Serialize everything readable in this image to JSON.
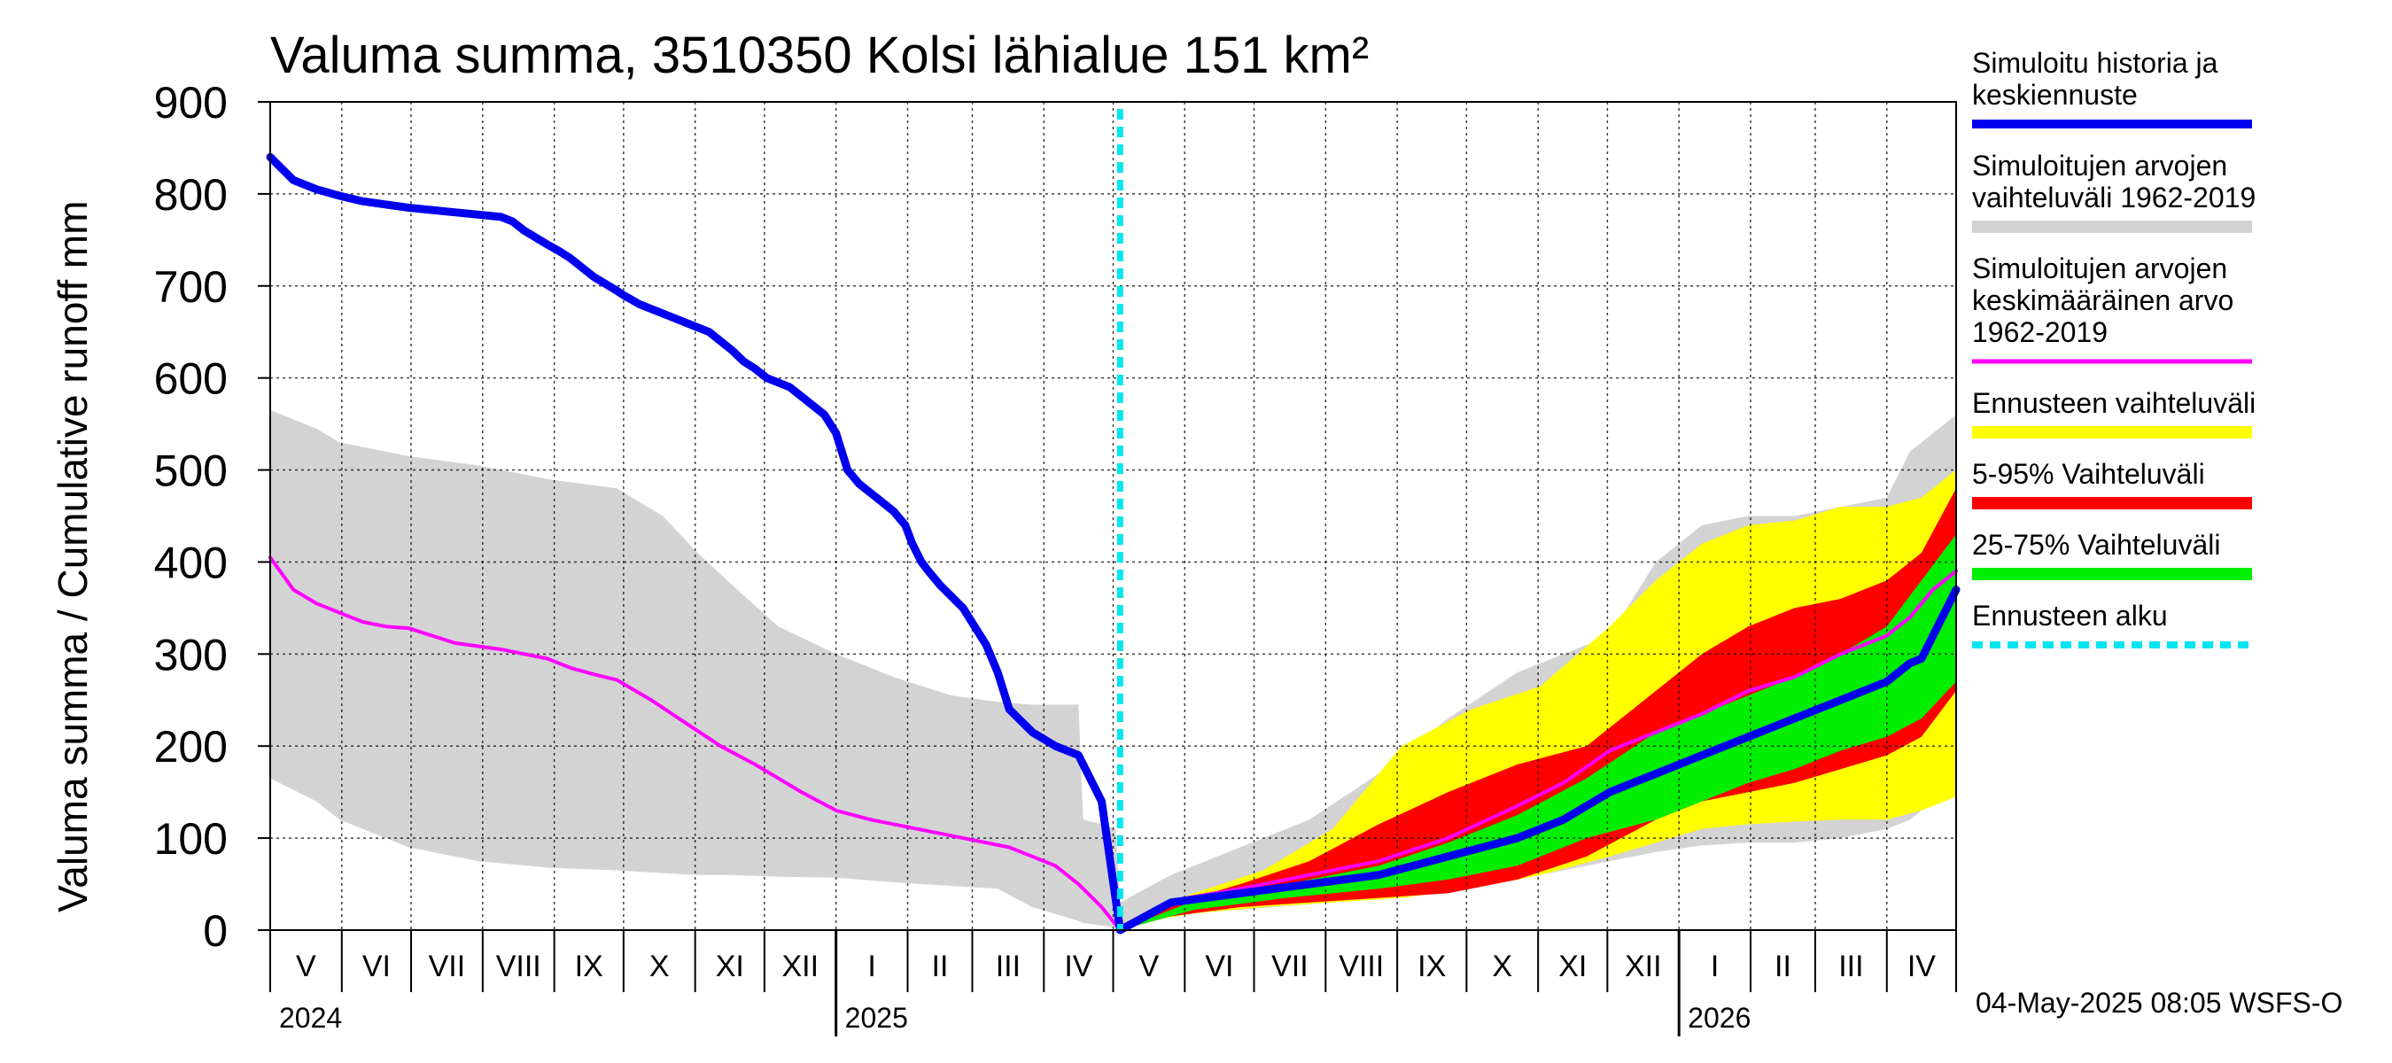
{
  "colors": {
    "history_range": "#d3d3d3",
    "mean": "#ff00ff",
    "forecast_range": "#ffff00",
    "p5_95": "#ff0000",
    "p25_75": "#00ee00",
    "history_median": "#0000ee",
    "forecast_start": "#00e5ee"
  },
  "chart_data": {
    "type": "area",
    "title": "Valuma summa, 3510350 Kolsi lähialue 151 km²",
    "ylabel": "Valuma summa / Cumulative runoff    mm",
    "ylim": [
      0,
      900
    ],
    "yticks": [
      0,
      100,
      200,
      300,
      400,
      500,
      600,
      700,
      800,
      900
    ],
    "xlim_days": [
      0,
      730
    ],
    "forecast_start_day": 368,
    "month_labels": [
      "V",
      "VI",
      "VII",
      "VIII",
      "IX",
      "X",
      "XI",
      "XII",
      "I",
      "II",
      "III",
      "IV",
      "V",
      "VI",
      "VII",
      "VIII",
      "IX",
      "X",
      "XI",
      "XII",
      "I",
      "II",
      "III",
      "IV"
    ],
    "month_boundaries_days": [
      0,
      31,
      61,
      92,
      123,
      153,
      184,
      214,
      245,
      276,
      304,
      335,
      365,
      396,
      426,
      457,
      488,
      518,
      549,
      579,
      610,
      641,
      669,
      700,
      730
    ],
    "year_labels": [
      {
        "label": "2024",
        "day": 0
      },
      {
        "label": "2025",
        "day": 245
      },
      {
        "label": "2026",
        "day": 610
      }
    ],
    "timestamp": "04-May-2025 08:05 WSFS-O",
    "legend": [
      {
        "label": [
          "Simuloitu historia ja",
          "keskiennuste"
        ],
        "color_key": "history_median",
        "style": "thick"
      },
      {
        "label": [
          "Simuloitujen arvojen",
          "vaihteluväli 1962-2019"
        ],
        "color_key": "history_range",
        "style": "band"
      },
      {
        "label": [
          "Simuloitujen arvojen",
          "keskimääräinen arvo",
          "   1962-2019"
        ],
        "color_key": "mean",
        "style": "thin"
      },
      {
        "label": [
          "Ennusteen vaihteluväli"
        ],
        "color_key": "forecast_range",
        "style": "band"
      },
      {
        "label": [
          "5-95% Vaihteluväli"
        ],
        "color_key": "p5_95",
        "style": "band"
      },
      {
        "label": [
          "25-75% Vaihteluväli"
        ],
        "color_key": "p25_75",
        "style": "band"
      },
      {
        "label": [
          "Ennusteen alku"
        ],
        "color_key": "forecast_start",
        "style": "dashed"
      }
    ],
    "series": [
      {
        "name": "Simuloitujen arvojen vaihteluväli 1962-2019 (historia)",
        "type": "band",
        "x": [
          0,
          20,
          30,
          60,
          90,
          120,
          150,
          170,
          185,
          200,
          220,
          245,
          270,
          295,
          315,
          330,
          350,
          352,
          360,
          366,
          368
        ],
        "upper": [
          565,
          545,
          530,
          515,
          505,
          490,
          480,
          450,
          410,
          375,
          330,
          300,
          275,
          255,
          248,
          245,
          245,
          120,
          115,
          110,
          30
        ],
        "lower": [
          165,
          140,
          120,
          90,
          75,
          68,
          65,
          62,
          60,
          60,
          58,
          57,
          52,
          48,
          45,
          25,
          10,
          8,
          5,
          3,
          0
        ]
      },
      {
        "name": "Simuloitujen arvojen vaihteluväli 1962-2019 (ennuste)",
        "type": "band",
        "x": [
          368,
          390,
          420,
          450,
          480,
          510,
          540,
          560,
          580,
          600,
          620,
          640,
          660,
          680,
          700,
          710,
          720,
          730
        ],
        "upper": [
          30,
          60,
          90,
          120,
          170,
          230,
          280,
          300,
          320,
          400,
          440,
          450,
          450,
          460,
          470,
          520,
          540,
          560
        ],
        "lower": [
          0,
          18,
          22,
          28,
          35,
          45,
          55,
          65,
          75,
          85,
          92,
          95,
          95,
          100,
          110,
          120,
          140,
          150
        ]
      },
      {
        "name": "Ennusteen vaihteluväli",
        "type": "band",
        "x": [
          368,
          380,
          400,
          430,
          460,
          490,
          520,
          550,
          580,
          600,
          620,
          640,
          660,
          680,
          700,
          715,
          730
        ],
        "upper": [
          0,
          20,
          40,
          65,
          110,
          200,
          240,
          265,
          330,
          380,
          420,
          440,
          445,
          460,
          460,
          470,
          500
        ],
        "lower": [
          0,
          10,
          18,
          25,
          30,
          35,
          45,
          60,
          80,
          95,
          110,
          115,
          118,
          120,
          120,
          130,
          145
        ]
      },
      {
        "name": "5-95% Vaihteluväli",
        "type": "band",
        "x": [
          368,
          390,
          420,
          450,
          480,
          510,
          540,
          570,
          600,
          620,
          640,
          660,
          680,
          700,
          715,
          730
        ],
        "upper": [
          0,
          28,
          50,
          75,
          115,
          150,
          180,
          200,
          260,
          300,
          330,
          350,
          360,
          380,
          410,
          480
        ],
        "lower": [
          0,
          15,
          25,
          30,
          35,
          40,
          55,
          80,
          120,
          140,
          150,
          160,
          175,
          190,
          210,
          260
        ]
      },
      {
        "name": "25-75% Vaihteluväli",
        "type": "band",
        "x": [
          368,
          400,
          440,
          480,
          510,
          540,
          570,
          600,
          620,
          640,
          660,
          680,
          700,
          715,
          730
        ],
        "upper": [
          0,
          32,
          50,
          70,
          95,
          125,
          165,
          215,
          235,
          255,
          275,
          300,
          330,
          380,
          430
        ],
        "lower": [
          0,
          22,
          35,
          45,
          55,
          70,
          100,
          120,
          140,
          160,
          175,
          195,
          210,
          230,
          270
        ]
      },
      {
        "name": "Simuloitujen arvojen keskimääräinen arvo 1962-2019",
        "type": "line",
        "x": [
          0,
          10,
          20,
          30,
          40,
          50,
          60,
          80,
          100,
          120,
          130,
          140,
          150,
          165,
          180,
          195,
          210,
          230,
          245,
          260,
          280,
          300,
          320,
          340,
          350,
          360,
          368,
          390,
          420,
          450,
          480,
          510,
          540,
          560,
          580,
          600,
          620,
          640,
          660,
          680,
          700,
          710,
          720,
          730
        ],
        "y": [
          405,
          370,
          355,
          345,
          335,
          330,
          328,
          312,
          305,
          295,
          285,
          278,
          272,
          250,
          225,
          200,
          180,
          150,
          130,
          120,
          110,
          100,
          90,
          70,
          50,
          25,
          0,
          32,
          45,
          60,
          75,
          100,
          135,
          160,
          195,
          215,
          235,
          260,
          275,
          300,
          320,
          340,
          370,
          390
        ]
      },
      {
        "name": "Simuloitu historia ja keskiennuste",
        "type": "line",
        "x": [
          0,
          10,
          20,
          30,
          40,
          60,
          80,
          100,
          105,
          110,
          120,
          125,
          130,
          140,
          150,
          153,
          160,
          170,
          180,
          190,
          200,
          205,
          210,
          215,
          225,
          230,
          240,
          245,
          250,
          255,
          265,
          270,
          275,
          278,
          282,
          285,
          290,
          300,
          305,
          310,
          315,
          320,
          330,
          340,
          350,
          360,
          368,
          390,
          420,
          450,
          480,
          510,
          540,
          560,
          580,
          600,
          620,
          640,
          660,
          680,
          700,
          710,
          715,
          720,
          730
        ],
        "y": [
          840,
          815,
          805,
          798,
          792,
          785,
          780,
          775,
          770,
          760,
          745,
          738,
          730,
          710,
          695,
          690,
          680,
          670,
          660,
          650,
          630,
          618,
          610,
          600,
          590,
          580,
          560,
          540,
          500,
          485,
          465,
          455,
          440,
          420,
          400,
          390,
          375,
          350,
          330,
          310,
          280,
          240,
          215,
          200,
          190,
          140,
          0,
          30,
          40,
          50,
          60,
          80,
          100,
          120,
          150,
          170,
          190,
          210,
          230,
          250,
          270,
          290,
          295,
          320,
          370
        ]
      }
    ]
  }
}
